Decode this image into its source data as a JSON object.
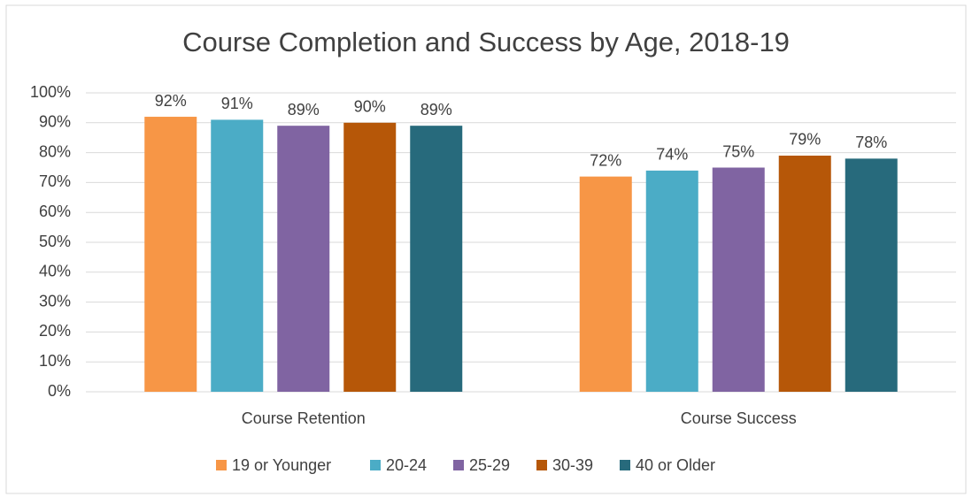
{
  "chart_data": {
    "type": "bar",
    "title": "Course Completion and Success by Age, 2018-19",
    "categories": [
      "Course Retention",
      "Course Success"
    ],
    "series": [
      {
        "name": "19 or Younger",
        "color": "#f79646",
        "values": [
          92,
          72
        ],
        "value_labels": [
          "92%",
          "72%"
        ]
      },
      {
        "name": "20-24",
        "color": "#4bacc6",
        "values": [
          91,
          74
        ],
        "value_labels": [
          "91%",
          "74%"
        ]
      },
      {
        "name": "25-29",
        "color": "#8064a2",
        "values": [
          89,
          75
        ],
        "value_labels": [
          "89%",
          "75%"
        ]
      },
      {
        "name": "30-39",
        "color": "#b65708",
        "values": [
          90,
          79
        ],
        "value_labels": [
          "90%",
          "79%"
        ]
      },
      {
        "name": "40 or Older",
        "color": "#276a7c",
        "values": [
          89,
          78
        ],
        "value_labels": [
          "89%",
          "78%"
        ]
      }
    ],
    "ylim": [
      0,
      100
    ],
    "yticks": [
      {
        "value": 0,
        "label": "0%"
      },
      {
        "value": 10,
        "label": "10%"
      },
      {
        "value": 20,
        "label": "20%"
      },
      {
        "value": 30,
        "label": "30%"
      },
      {
        "value": 40,
        "label": "40%"
      },
      {
        "value": 50,
        "label": "50%"
      },
      {
        "value": 60,
        "label": "60%"
      },
      {
        "value": 70,
        "label": "70%"
      },
      {
        "value": 80,
        "label": "80%"
      },
      {
        "value": 90,
        "label": "90%"
      },
      {
        "value": 100,
        "label": "100%"
      }
    ],
    "grid": true,
    "legend": "bottom"
  }
}
